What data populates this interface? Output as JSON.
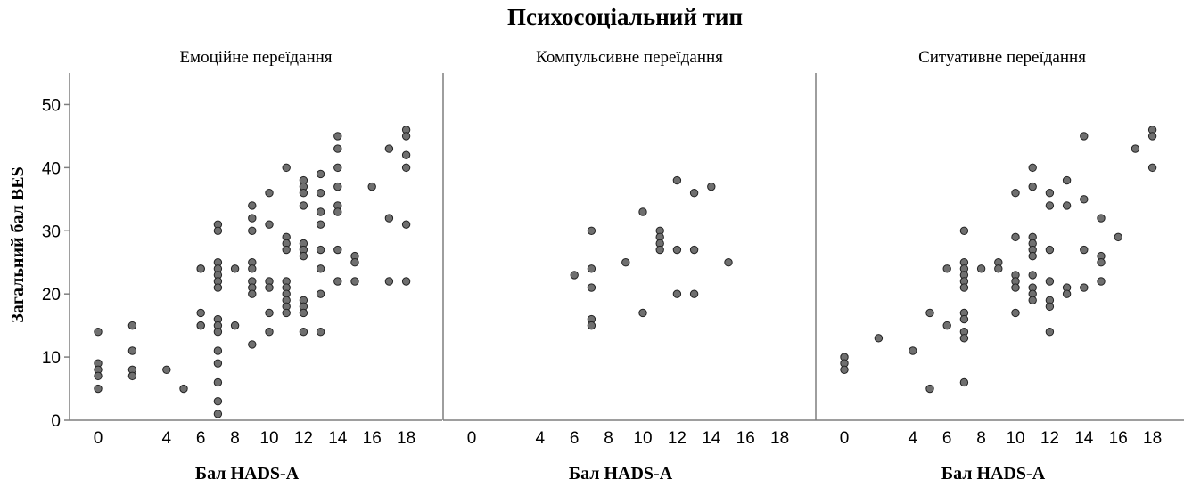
{
  "chart_data": {
    "type": "scatter",
    "title": "Психосоціальний тип",
    "ylabel": "Загальний бал BES",
    "ylim": [
      0,
      55
    ],
    "yticks": [
      0,
      10,
      20,
      30,
      40,
      50
    ],
    "xlim": [
      -2,
      20
    ],
    "xticks": [
      0,
      4,
      6,
      8,
      10,
      12,
      14,
      16,
      18
    ],
    "grid": false,
    "panels": [
      {
        "title": "Емоційне переїдання",
        "xlabel": "Бал HADS-A",
        "points": [
          [
            0,
            14
          ],
          [
            0,
            9
          ],
          [
            0,
            8
          ],
          [
            0,
            7
          ],
          [
            0,
            5
          ],
          [
            2,
            15
          ],
          [
            2,
            11
          ],
          [
            2,
            8
          ],
          [
            2,
            7
          ],
          [
            4,
            8
          ],
          [
            5,
            5
          ],
          [
            6,
            24
          ],
          [
            6,
            24
          ],
          [
            6,
            17
          ],
          [
            6,
            15
          ],
          [
            6,
            15
          ],
          [
            7,
            31
          ],
          [
            7,
            30
          ],
          [
            7,
            25
          ],
          [
            7,
            24
          ],
          [
            7,
            23
          ],
          [
            7,
            22
          ],
          [
            7,
            21
          ],
          [
            7,
            16
          ],
          [
            7,
            15
          ],
          [
            7,
            14
          ],
          [
            7,
            11
          ],
          [
            7,
            9
          ],
          [
            7,
            6
          ],
          [
            7,
            3
          ],
          [
            7,
            1
          ],
          [
            8,
            24
          ],
          [
            8,
            15
          ],
          [
            9,
            34
          ],
          [
            9,
            32
          ],
          [
            9,
            30
          ],
          [
            9,
            25
          ],
          [
            9,
            24
          ],
          [
            9,
            22
          ],
          [
            9,
            21
          ],
          [
            9,
            20
          ],
          [
            9,
            12
          ],
          [
            10,
            36
          ],
          [
            10,
            31
          ],
          [
            10,
            22
          ],
          [
            10,
            21
          ],
          [
            10,
            17
          ],
          [
            10,
            14
          ],
          [
            11,
            40
          ],
          [
            11,
            29
          ],
          [
            11,
            28
          ],
          [
            11,
            27
          ],
          [
            11,
            22
          ],
          [
            11,
            21
          ],
          [
            11,
            20
          ],
          [
            11,
            19
          ],
          [
            11,
            18
          ],
          [
            11,
            17
          ],
          [
            12,
            38
          ],
          [
            12,
            37
          ],
          [
            12,
            36
          ],
          [
            12,
            34
          ],
          [
            12,
            28
          ],
          [
            12,
            27
          ],
          [
            12,
            26
          ],
          [
            12,
            19
          ],
          [
            12,
            18
          ],
          [
            12,
            17
          ],
          [
            12,
            14
          ],
          [
            13,
            39
          ],
          [
            13,
            36
          ],
          [
            13,
            33
          ],
          [
            13,
            31
          ],
          [
            13,
            27
          ],
          [
            13,
            24
          ],
          [
            13,
            20
          ],
          [
            13,
            14
          ],
          [
            14,
            45
          ],
          [
            14,
            43
          ],
          [
            14,
            40
          ],
          [
            14,
            37
          ],
          [
            14,
            34
          ],
          [
            14,
            33
          ],
          [
            14,
            27
          ],
          [
            14,
            22
          ],
          [
            15,
            26
          ],
          [
            15,
            25
          ],
          [
            15,
            22
          ],
          [
            16,
            37
          ],
          [
            17,
            43
          ],
          [
            17,
            32
          ],
          [
            17,
            22
          ],
          [
            18,
            46
          ],
          [
            18,
            45
          ],
          [
            18,
            42
          ],
          [
            18,
            40
          ],
          [
            18,
            31
          ],
          [
            18,
            22
          ]
        ]
      },
      {
        "title": "Компульсивне переїдання",
        "xlabel": "Бал HADS-A",
        "points": [
          [
            6,
            23
          ],
          [
            7,
            30
          ],
          [
            7,
            24
          ],
          [
            7,
            21
          ],
          [
            7,
            16
          ],
          [
            7,
            15
          ],
          [
            9,
            25
          ],
          [
            10,
            33
          ],
          [
            10,
            17
          ],
          [
            11,
            30
          ],
          [
            11,
            29
          ],
          [
            11,
            28
          ],
          [
            11,
            27
          ],
          [
            12,
            38
          ],
          [
            12,
            27
          ],
          [
            12,
            20
          ],
          [
            13,
            36
          ],
          [
            13,
            27
          ],
          [
            13,
            20
          ],
          [
            14,
            37
          ],
          [
            15,
            25
          ]
        ]
      },
      {
        "title": "Ситуативне переїдання",
        "xlabel": "Бал HADS-A",
        "points": [
          [
            0,
            10
          ],
          [
            0,
            9
          ],
          [
            0,
            8
          ],
          [
            2,
            13
          ],
          [
            4,
            11
          ],
          [
            5,
            17
          ],
          [
            5,
            5
          ],
          [
            6,
            24
          ],
          [
            6,
            15
          ],
          [
            7,
            30
          ],
          [
            7,
            25
          ],
          [
            7,
            24
          ],
          [
            7,
            23
          ],
          [
            7,
            22
          ],
          [
            7,
            21
          ],
          [
            7,
            17
          ],
          [
            7,
            16
          ],
          [
            7,
            14
          ],
          [
            7,
            13
          ],
          [
            7,
            6
          ],
          [
            8,
            24
          ],
          [
            9,
            25
          ],
          [
            9,
            24
          ],
          [
            10,
            36
          ],
          [
            10,
            29
          ],
          [
            10,
            23
          ],
          [
            10,
            22
          ],
          [
            10,
            21
          ],
          [
            10,
            17
          ],
          [
            11,
            40
          ],
          [
            11,
            37
          ],
          [
            11,
            29
          ],
          [
            11,
            28
          ],
          [
            11,
            27
          ],
          [
            11,
            26
          ],
          [
            11,
            23
          ],
          [
            11,
            21
          ],
          [
            11,
            20
          ],
          [
            11,
            19
          ],
          [
            12,
            36
          ],
          [
            12,
            34
          ],
          [
            12,
            27
          ],
          [
            12,
            22
          ],
          [
            12,
            19
          ],
          [
            12,
            18
          ],
          [
            12,
            14
          ],
          [
            13,
            38
          ],
          [
            13,
            34
          ],
          [
            13,
            21
          ],
          [
            13,
            20
          ],
          [
            14,
            45
          ],
          [
            14,
            35
          ],
          [
            14,
            27
          ],
          [
            14,
            21
          ],
          [
            15,
            32
          ],
          [
            15,
            26
          ],
          [
            15,
            25
          ],
          [
            15,
            22
          ],
          [
            16,
            29
          ],
          [
            17,
            43
          ],
          [
            18,
            46
          ],
          [
            18,
            45
          ],
          [
            18,
            40
          ]
        ]
      }
    ]
  }
}
